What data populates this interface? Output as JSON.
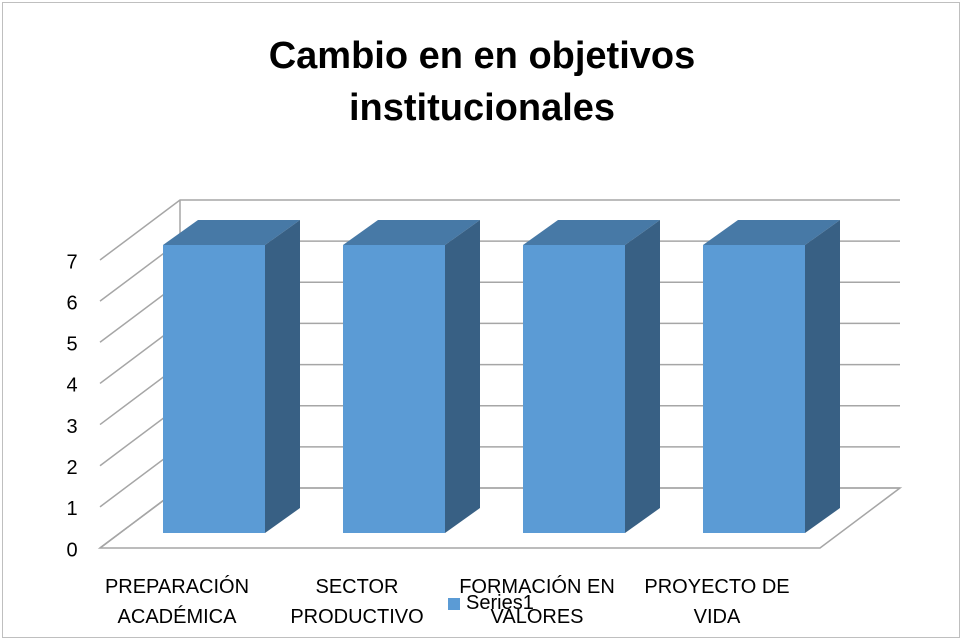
{
  "chart_data": {
    "type": "bar3d",
    "title": "Cambio en en objetivos institucionales",
    "categories": [
      "PREPARACIÓN ACADÉMICA",
      "SECTOR PRODUCTIVO",
      "FORMACIÓN EN VALORES",
      "PROYECTO DE VIDA"
    ],
    "series": [
      {
        "name": "Series1",
        "color": "#5b9bd5",
        "values": [
          7,
          7,
          7,
          7
        ]
      }
    ],
    "ylim": [
      0,
      7
    ],
    "yticks": [
      0,
      1,
      2,
      3,
      4,
      5,
      6,
      7
    ],
    "grid": true,
    "legend": "bottom"
  }
}
